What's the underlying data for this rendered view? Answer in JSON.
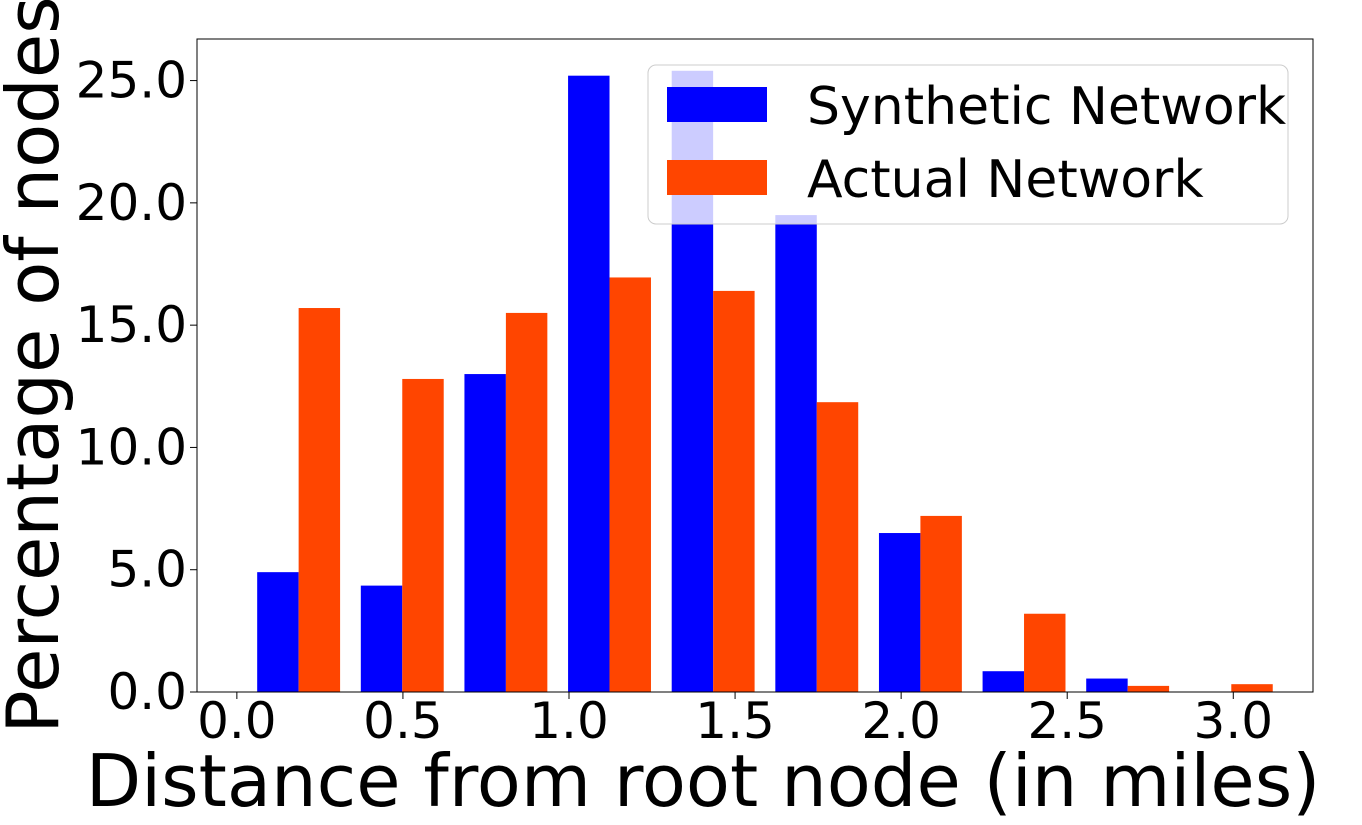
{
  "chart_data": {
    "type": "bar",
    "title": "",
    "xlabel": "Distance from root node (in miles)",
    "ylabel": "Percentage of nodes",
    "xlim": [
      -0.12,
      3.24
    ],
    "ylim": [
      0,
      26.7
    ],
    "xticks": [
      0.0,
      0.5,
      1.0,
      1.5,
      2.0,
      2.5,
      3.0
    ],
    "xtick_labels": [
      "0.0",
      "0.5",
      "1.0",
      "1.5",
      "2.0",
      "2.5",
      "3.0"
    ],
    "yticks": [
      0,
      5,
      10,
      15,
      20,
      25
    ],
    "ytick_labels": [
      "0.0",
      "5.0",
      "10.0",
      "15.0",
      "20.0",
      "25.0"
    ],
    "bin_edges": [
      0.03,
      0.342,
      0.654,
      0.966,
      1.278,
      1.59,
      1.902,
      2.214,
      2.526,
      2.838,
      3.15
    ],
    "series": [
      {
        "name": "Synthetic Network",
        "color": "#0000ff",
        "values": [
          4.9,
          4.35,
          13.0,
          25.2,
          25.4,
          19.5,
          6.5,
          0.85,
          0.55,
          0.0
        ]
      },
      {
        "name": "Actual Network",
        "color": "#ff4500",
        "values": [
          15.7,
          12.8,
          15.5,
          16.95,
          16.4,
          11.85,
          7.2,
          3.2,
          0.25,
          0.32
        ]
      }
    ],
    "legend_position": "top-right",
    "grid": false
  }
}
